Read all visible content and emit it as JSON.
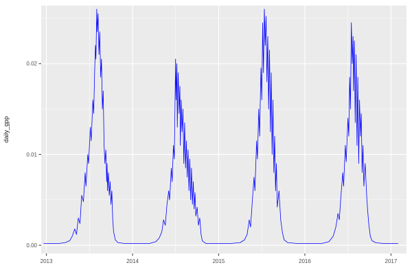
{
  "chart_data": {
    "type": "line",
    "title": "",
    "xlabel": "",
    "ylabel": "daily_gpp",
    "x_ticks": [
      2013,
      2014,
      2015,
      2016,
      2017
    ],
    "x_tick_labels": [
      "2013",
      "2014",
      "2015",
      "2016",
      "2017"
    ],
    "x_minor": [
      2013.5,
      2014.5,
      2015.5,
      2016.5
    ],
    "y_ticks": [
      0,
      0.01,
      0.02
    ],
    "y_tick_labels": [
      "0.00",
      "0.01",
      "0.02"
    ],
    "y_minor": [
      0.005,
      0.015,
      0.025
    ],
    "xlim": [
      2012.94,
      2017.18
    ],
    "ylim": [
      -0.0009,
      0.0264
    ],
    "grid": true,
    "legend": "none",
    "line_color": "#0000FF",
    "panel_bg": "#EBEBEB",
    "grid_major_color": "#FFFFFF",
    "grid_minor_color": "#FFFFFF",
    "tick_color": "#333333",
    "series": [
      {
        "name": "daily_gpp",
        "points": [
          [
            2012.97,
            0.0002
          ],
          [
            2013.05,
            0.0002
          ],
          [
            2013.15,
            0.0002
          ],
          [
            2013.22,
            0.0003
          ],
          [
            2013.27,
            0.0005
          ],
          [
            2013.3,
            0.001
          ],
          [
            2013.33,
            0.0018
          ],
          [
            2013.35,
            0.0012
          ],
          [
            2013.37,
            0.003
          ],
          [
            2013.39,
            0.0024
          ],
          [
            2013.41,
            0.0055
          ],
          [
            2013.43,
            0.0048
          ],
          [
            2013.45,
            0.008
          ],
          [
            2013.46,
            0.0065
          ],
          [
            2013.48,
            0.01
          ],
          [
            2013.49,
            0.009
          ],
          [
            2013.51,
            0.013
          ],
          [
            2013.52,
            0.0115
          ],
          [
            2013.54,
            0.016
          ],
          [
            2013.55,
            0.0145
          ],
          [
            2013.56,
            0.019
          ],
          [
            2013.57,
            0.022
          ],
          [
            2013.575,
            0.0205
          ],
          [
            2013.585,
            0.026
          ],
          [
            2013.59,
            0.0235
          ],
          [
            2013.6,
            0.0255
          ],
          [
            2013.61,
            0.021
          ],
          [
            2013.62,
            0.0235
          ],
          [
            2013.63,
            0.0185
          ],
          [
            2013.64,
            0.0205
          ],
          [
            2013.65,
            0.015
          ],
          [
            2013.66,
            0.017
          ],
          [
            2013.67,
            0.011
          ],
          [
            2013.68,
            0.009
          ],
          [
            2013.69,
            0.0105
          ],
          [
            2013.7,
            0.007
          ],
          [
            2013.705,
            0.009
          ],
          [
            2013.71,
            0.006
          ],
          [
            2013.72,
            0.008
          ],
          [
            2013.73,
            0.0055
          ],
          [
            2013.74,
            0.007
          ],
          [
            2013.75,
            0.0045
          ],
          [
            2013.76,
            0.006
          ],
          [
            2013.77,
            0.003
          ],
          [
            2013.78,
            0.0015
          ],
          [
            2013.8,
            0.0006
          ],
          [
            2013.83,
            0.0003
          ],
          [
            2013.9,
            0.0002
          ],
          [
            2014.0,
            0.0002
          ],
          [
            2014.1,
            0.0002
          ],
          [
            2014.2,
            0.0002
          ],
          [
            2014.27,
            0.0004
          ],
          [
            2014.31,
            0.0008
          ],
          [
            2014.34,
            0.0015
          ],
          [
            2014.36,
            0.0028
          ],
          [
            2014.38,
            0.0022
          ],
          [
            2014.4,
            0.0045
          ],
          [
            2014.42,
            0.006
          ],
          [
            2014.43,
            0.005
          ],
          [
            2014.45,
            0.0085
          ],
          [
            2014.46,
            0.007
          ],
          [
            2014.475,
            0.011
          ],
          [
            2014.485,
            0.0095
          ],
          [
            2014.5,
            0.0205
          ],
          [
            2014.505,
            0.016
          ],
          [
            2014.515,
            0.02
          ],
          [
            2014.52,
            0.013
          ],
          [
            2014.53,
            0.019
          ],
          [
            2014.54,
            0.0145
          ],
          [
            2014.55,
            0.0175
          ],
          [
            2014.555,
            0.011
          ],
          [
            2014.565,
            0.016
          ],
          [
            2014.575,
            0.0125
          ],
          [
            2014.585,
            0.015
          ],
          [
            2014.595,
            0.009
          ],
          [
            2014.605,
            0.0135
          ],
          [
            2014.615,
            0.0085
          ],
          [
            2014.625,
            0.0115
          ],
          [
            2014.635,
            0.0075
          ],
          [
            2014.645,
            0.0105
          ],
          [
            2014.655,
            0.006
          ],
          [
            2014.665,
            0.0095
          ],
          [
            2014.675,
            0.005
          ],
          [
            2014.685,
            0.0085
          ],
          [
            2014.695,
            0.0045
          ],
          [
            2014.705,
            0.007
          ],
          [
            2014.715,
            0.004
          ],
          [
            2014.725,
            0.0058
          ],
          [
            2014.735,
            0.0032
          ],
          [
            2014.75,
            0.0042
          ],
          [
            2014.765,
            0.0022
          ],
          [
            2014.78,
            0.003
          ],
          [
            2014.795,
            0.0012
          ],
          [
            2014.81,
            0.0005
          ],
          [
            2014.85,
            0.0002
          ],
          [
            2014.95,
            0.0002
          ],
          [
            2015.05,
            0.0002
          ],
          [
            2015.15,
            0.0002
          ],
          [
            2015.25,
            0.0003
          ],
          [
            2015.3,
            0.0006
          ],
          [
            2015.33,
            0.0012
          ],
          [
            2015.355,
            0.0028
          ],
          [
            2015.37,
            0.002
          ],
          [
            2015.39,
            0.0048
          ],
          [
            2015.41,
            0.0075
          ],
          [
            2015.42,
            0.006
          ],
          [
            2015.44,
            0.0115
          ],
          [
            2015.45,
            0.0095
          ],
          [
            2015.465,
            0.015
          ],
          [
            2015.475,
            0.012
          ],
          [
            2015.49,
            0.0195
          ],
          [
            2015.5,
            0.016
          ],
          [
            2015.51,
            0.0245
          ],
          [
            2015.52,
            0.019
          ],
          [
            2015.53,
            0.026
          ],
          [
            2015.54,
            0.022
          ],
          [
            2015.55,
            0.0252
          ],
          [
            2015.56,
            0.018
          ],
          [
            2015.57,
            0.023
          ],
          [
            2015.58,
            0.015
          ],
          [
            2015.59,
            0.0215
          ],
          [
            2015.6,
            0.0125
          ],
          [
            2015.61,
            0.019
          ],
          [
            2015.62,
            0.01
          ],
          [
            2015.63,
            0.016
          ],
          [
            2015.64,
            0.008
          ],
          [
            2015.65,
            0.012
          ],
          [
            2015.66,
            0.006
          ],
          [
            2015.67,
            0.009
          ],
          [
            2015.68,
            0.0042
          ],
          [
            2015.7,
            0.006
          ],
          [
            2015.72,
            0.0028
          ],
          [
            2015.74,
            0.0014
          ],
          [
            2015.76,
            0.0006
          ],
          [
            2015.8,
            0.0003
          ],
          [
            2015.9,
            0.0002
          ],
          [
            2016.0,
            0.0002
          ],
          [
            2016.1,
            0.0002
          ],
          [
            2016.2,
            0.0002
          ],
          [
            2016.28,
            0.0004
          ],
          [
            2016.33,
            0.001
          ],
          [
            2016.36,
            0.002
          ],
          [
            2016.385,
            0.0035
          ],
          [
            2016.4,
            0.0028
          ],
          [
            2016.42,
            0.0055
          ],
          [
            2016.44,
            0.008
          ],
          [
            2016.45,
            0.0065
          ],
          [
            2016.47,
            0.011
          ],
          [
            2016.48,
            0.0092
          ],
          [
            2016.5,
            0.014
          ],
          [
            2016.51,
            0.012
          ],
          [
            2016.52,
            0.0185
          ],
          [
            2016.53,
            0.015
          ],
          [
            2016.54,
            0.0245
          ],
          [
            2016.55,
            0.02
          ],
          [
            2016.56,
            0.023
          ],
          [
            2016.565,
            0.017
          ],
          [
            2016.575,
            0.0225
          ],
          [
            2016.585,
            0.0135
          ],
          [
            2016.595,
            0.021
          ],
          [
            2016.605,
            0.011
          ],
          [
            2016.615,
            0.0185
          ],
          [
            2016.625,
            0.009
          ],
          [
            2016.635,
            0.016
          ],
          [
            2016.645,
            0.012
          ],
          [
            2016.655,
            0.0145
          ],
          [
            2016.665,
            0.008
          ],
          [
            2016.675,
            0.011
          ],
          [
            2016.685,
            0.0065
          ],
          [
            2016.7,
            0.009
          ],
          [
            2016.72,
            0.005
          ],
          [
            2016.74,
            0.0025
          ],
          [
            2016.76,
            0.001
          ],
          [
            2016.78,
            0.0005
          ],
          [
            2016.82,
            0.0003
          ],
          [
            2016.9,
            0.0002
          ],
          [
            2017.0,
            0.0002
          ],
          [
            2017.08,
            0.0002
          ]
        ]
      }
    ]
  }
}
